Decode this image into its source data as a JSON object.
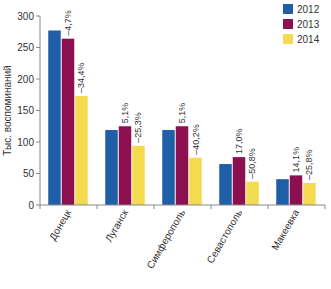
{
  "chart_data": {
    "type": "bar",
    "y_label": "Тыс. воспоминаний",
    "categories": [
      "Донецк",
      "Луганск",
      "Симферополь",
      "Севастополь",
      "Макеевка"
    ],
    "series": [
      {
        "name": "2012",
        "color": "#1f5fa8",
        "values": [
          277,
          119,
          119,
          65,
          41
        ]
      },
      {
        "name": "2013",
        "color": "#8c1050",
        "values": [
          264,
          125,
          125,
          76,
          47
        ],
        "changes": [
          "–4,7%",
          "5,1%",
          "5,1%",
          "17,0%",
          "14,1%"
        ]
      },
      {
        "name": "2014",
        "color": "#f3da4e",
        "values": [
          173,
          94,
          75,
          37,
          35
        ],
        "changes": [
          "–34,4%",
          "–25,3%",
          "–40,2%",
          "–50,8%",
          "–25,8%"
        ]
      }
    ],
    "ylim": [
      0,
      300
    ],
    "yticks": [
      0,
      50,
      100,
      150,
      200,
      250,
      300
    ],
    "grid": false,
    "legend": "top-right"
  }
}
